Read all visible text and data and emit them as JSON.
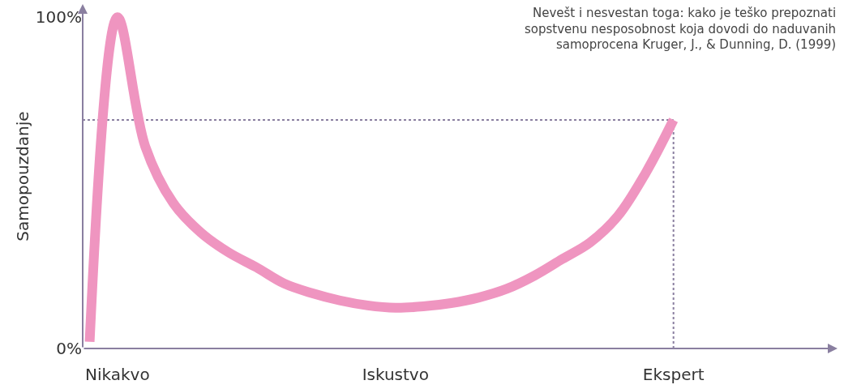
{
  "chart_data": {
    "type": "line",
    "ylabel": "Samopouzdanje",
    "annotations": [
      "Nevešt i nesvestan toga: kako je teško prepoznati\nsopstvenu nesposobnost koja dovodi do naduvanih\nsamoprocena Kruger, J., & Dunning, D. (1999)"
    ],
    "categories": [
      null,
      "Nikakvo",
      null,
      null,
      null,
      null,
      null,
      null,
      null,
      null,
      null,
      "Iskustvo",
      null,
      null,
      null,
      null,
      null,
      null,
      null,
      null,
      null,
      "Ekspert"
    ],
    "series": [
      {
        "color": "#ef95c0",
        "values": [
          2,
          100,
          61,
          44,
          35,
          29,
          24.5,
          19.6,
          16.7,
          14.5,
          13,
          12.3,
          12.7,
          13.7,
          15.4,
          18,
          22,
          27,
          32,
          40,
          53,
          69
        ]
      }
    ],
    "ylim": [
      0,
      104
    ],
    "yticks": [
      {
        "value": 0,
        "label": "0%"
      },
      {
        "value": 100,
        "label": "100%"
      }
    ],
    "ref_lines": [
      {
        "axis": "y",
        "value": 69,
        "color": "#8a7fa0",
        "line_style": "dotted"
      },
      {
        "axis": "x",
        "value": "Ekspert",
        "color": "#8a7fa0",
        "line_style": "dotted"
      }
    ],
    "grid": false,
    "marker": "none",
    "line_style": "solid"
  }
}
